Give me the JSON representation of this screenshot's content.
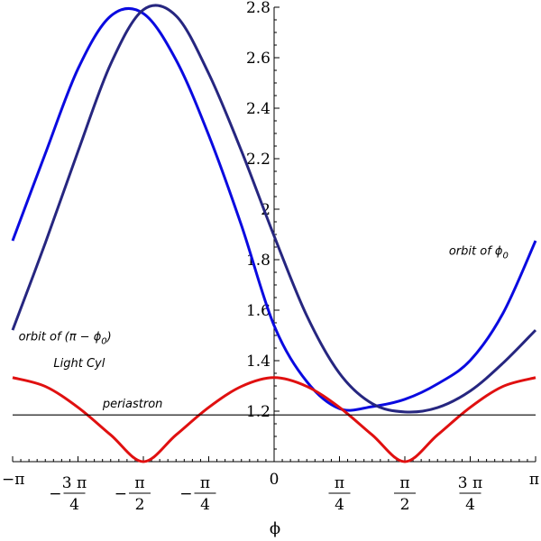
{
  "chart_data": {
    "type": "line",
    "xlabel": "ϕ",
    "ylabel": "",
    "xlim": [
      -3.14159,
      3.14159
    ],
    "ylim": [
      1.0,
      2.8
    ],
    "yticks": [
      {
        "value": 1.2,
        "label": "1.2"
      },
      {
        "value": 1.4,
        "label": "1.4"
      },
      {
        "value": 1.6,
        "label": "1.6"
      },
      {
        "value": 1.8,
        "label": "1.8"
      },
      {
        "value": 2.0,
        "label": "2"
      },
      {
        "value": 2.2,
        "label": "2.2"
      },
      {
        "value": 2.4,
        "label": "2.4"
      },
      {
        "value": 2.6,
        "label": "2.6"
      },
      {
        "value": 2.8,
        "label": "2.8"
      }
    ],
    "xticks": [
      {
        "value": -3.14159,
        "label": "−π"
      },
      {
        "value": -2.35619,
        "label": "−3π/4",
        "sign": "−",
        "num": "3 π",
        "den": "4"
      },
      {
        "value": -1.5708,
        "label": "−π/2",
        "sign": "−",
        "num": "π",
        "den": "2"
      },
      {
        "value": -0.7854,
        "label": "−π/4",
        "sign": "−",
        "num": "π",
        "den": "4"
      },
      {
        "value": 0,
        "label": "0"
      },
      {
        "value": 0.7854,
        "label": "π/4",
        "num": "π",
        "den": "4"
      },
      {
        "value": 1.5708,
        "label": "π/2",
        "num": "π",
        "den": "2"
      },
      {
        "value": 2.35619,
        "label": "3π/4",
        "num": "3 π",
        "den": "4"
      },
      {
        "value": 3.14159,
        "label": "π"
      }
    ],
    "series": [
      {
        "name": "orbit of ϕ0",
        "color": "#0a0ae0",
        "x": [
          -3.1416,
          -2.7489,
          -2.3562,
          -1.9635,
          -1.5708,
          -1.1781,
          -0.7854,
          -0.3927,
          0,
          0.3927,
          0.7854,
          1.1781,
          1.5708,
          1.9635,
          2.3562,
          2.7489,
          3.1416
        ],
        "y": [
          1.875,
          2.22,
          2.556,
          2.765,
          2.775,
          2.591,
          2.293,
          1.936,
          1.539,
          1.317,
          1.21,
          1.218,
          1.247,
          1.308,
          1.401,
          1.587,
          1.875
        ]
      },
      {
        "name": "orbit of (π − ϕ0)",
        "color": "#262680",
        "x": [
          -3.1416,
          -2.7489,
          -2.3562,
          -1.9635,
          -1.5708,
          -1.1781,
          -0.7854,
          -0.3927,
          0,
          0.3927,
          0.7854,
          1.1781,
          1.5708,
          1.9635,
          2.3562,
          2.7489,
          3.1416
        ],
        "y": [
          1.521,
          1.866,
          2.229,
          2.575,
          2.79,
          2.766,
          2.537,
          2.231,
          1.894,
          1.578,
          1.35,
          1.23,
          1.197,
          1.214,
          1.28,
          1.39,
          1.521
        ]
      },
      {
        "name": "Light Cyl",
        "color": "#e01010",
        "x": [
          -3.1416,
          -2.7489,
          -2.3562,
          -1.9635,
          -1.5708,
          -1.1781,
          -0.7854,
          -0.3927,
          0,
          0.3927,
          0.7854,
          1.1781,
          1.5708,
          1.9635,
          2.3562,
          2.7489,
          3.1416
        ],
        "y": [
          1.333,
          1.298,
          1.215,
          1.106,
          1.0,
          1.106,
          1.215,
          1.298,
          1.333,
          1.298,
          1.215,
          1.106,
          1.0,
          1.106,
          1.215,
          1.298,
          1.333
        ]
      },
      {
        "name": "periastron",
        "color": "#000000",
        "x": [
          -3.1416,
          3.1416
        ],
        "y": [
          1.185,
          1.185
        ]
      }
    ],
    "annotations": [
      {
        "text": "orbit of ϕ",
        "sub": "0",
        "x": 2.1,
        "y": 1.82
      },
      {
        "text": "orbit of (π − ϕ",
        "sub": "0",
        "tail": ")",
        "x": -3.07,
        "y": 1.48
      },
      {
        "text": "Light Cyl",
        "x": -2.65,
        "y": 1.375
      },
      {
        "text": "periastron",
        "x": -2.06,
        "y": 1.215
      }
    ]
  }
}
